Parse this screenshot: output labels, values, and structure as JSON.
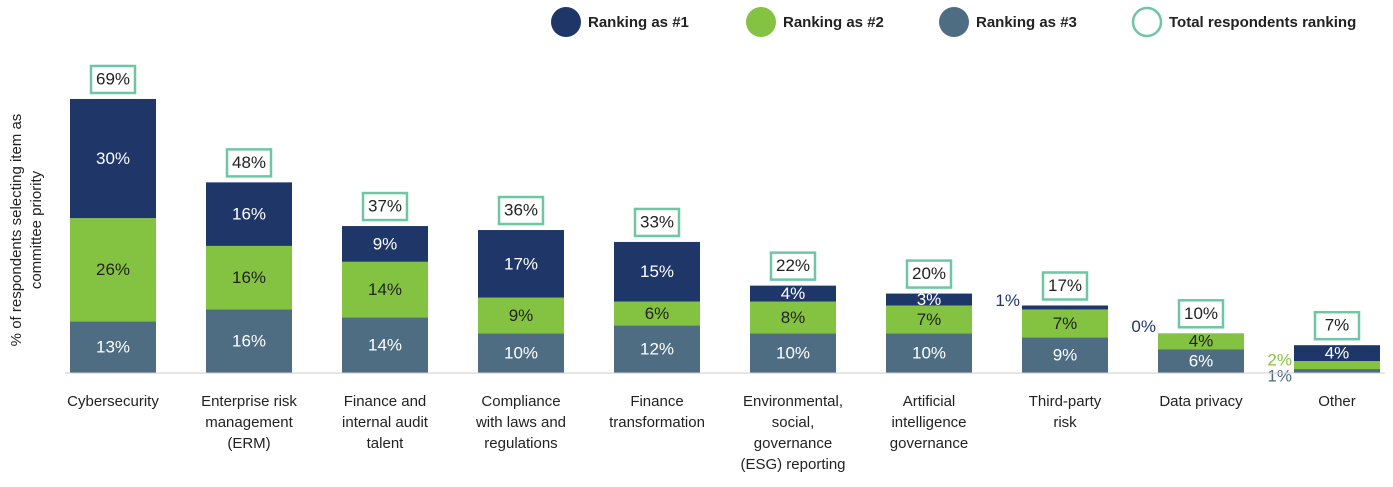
{
  "chart_data": {
    "type": "stacked_bar",
    "y_axis_label": "% of respondents selecting item as\ncommittee priority",
    "categories": [
      "Cybersecurity",
      "Enterprise risk\nmanagement\n(ERM)",
      "Finance and\ninternal audit\ntalent",
      "Compliance\nwith laws and\nregulations",
      "Finance\ntransformation",
      "Environmental,\nsocial,\ngovernance\n(ESG) reporting",
      "Artificial\nintelligence\ngovernance",
      "Third-party\nrisk",
      "Data privacy",
      "Other"
    ],
    "ylim": [
      0,
      70
    ],
    "series": [
      {
        "name": "Ranking as #3",
        "color": "#4e6d82",
        "values": [
          13,
          16,
          14,
          10,
          12,
          10,
          10,
          9,
          6,
          1
        ],
        "value_labels": [
          "13%",
          "16%",
          "14%",
          "10%",
          "12%",
          "10%",
          "10%",
          "9%",
          "6%",
          "1%"
        ]
      },
      {
        "name": "Ranking as #2",
        "color": "#84c341",
        "values": [
          26,
          16,
          14,
          9,
          6,
          8,
          7,
          7,
          4,
          2
        ],
        "value_labels": [
          "26%",
          "16%",
          "14%",
          "9%",
          "6%",
          "8%",
          "7%",
          "7%",
          "4%",
          "2%"
        ]
      },
      {
        "name": "Ranking as #1",
        "color": "#1f3768",
        "values": [
          30,
          16,
          9,
          17,
          15,
          4,
          3,
          1,
          0,
          4
        ],
        "value_labels": [
          "30%",
          "16%",
          "9%",
          "17%",
          "15%",
          "4%",
          "3%",
          "1%",
          "0%",
          "4%"
        ]
      }
    ],
    "total": {
      "name": "Total respondents ranking",
      "color": "#6ec6a5",
      "values": [
        69,
        48,
        37,
        36,
        33,
        22,
        20,
        17,
        10,
        7
      ],
      "value_labels": [
        "69%",
        "48%",
        "37%",
        "36%",
        "33%",
        "22%",
        "20%",
        "17%",
        "10%",
        "7%"
      ]
    }
  }
}
